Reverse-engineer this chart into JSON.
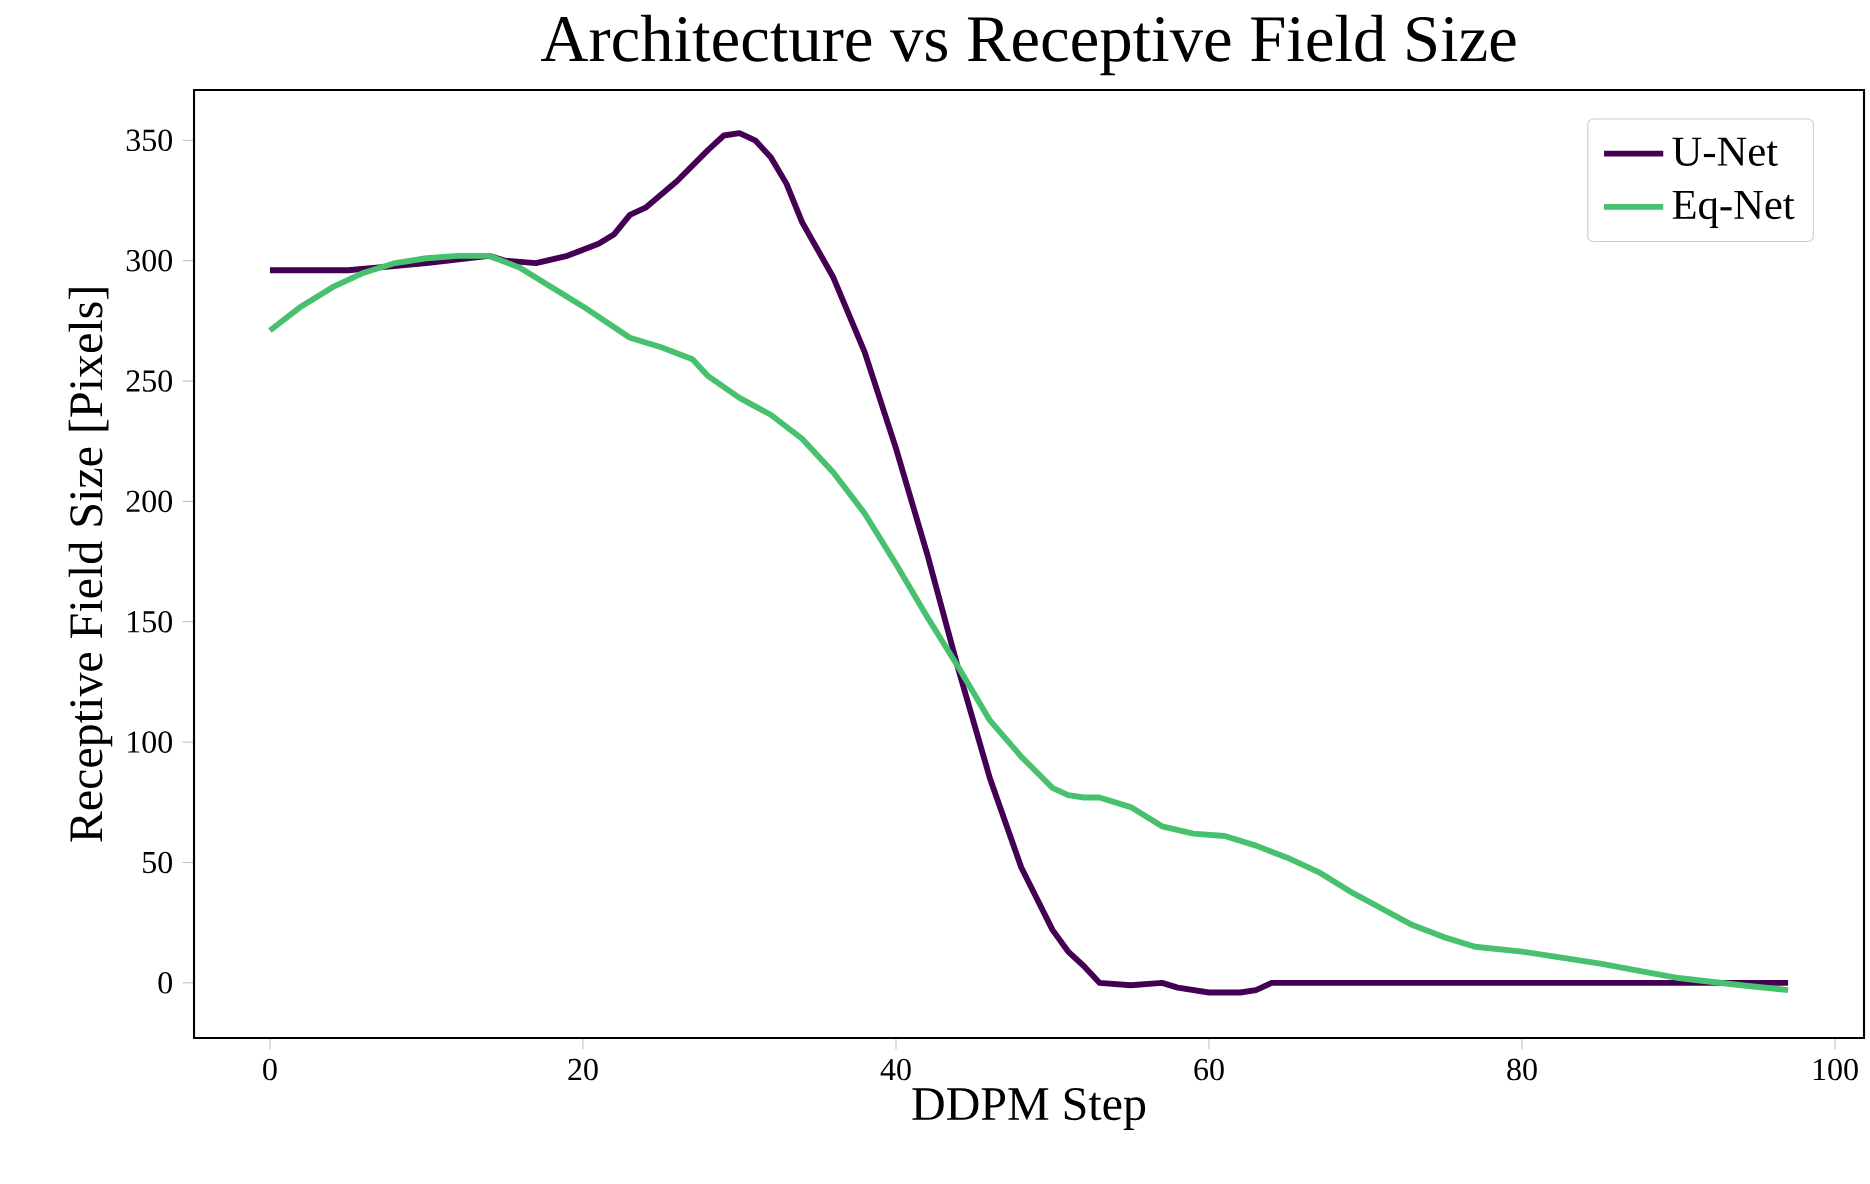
{
  "chart_data": {
    "type": "line",
    "title": "Architecture vs Receptive Field Size",
    "xlabel": "DDPM Step",
    "ylabel": "Receptive Field Size [Pixels]",
    "xlim": [
      -4.85,
      101.85
    ],
    "ylim": [
      -22.9,
      370.9
    ],
    "xticks": [
      0,
      20,
      40,
      60,
      80,
      100
    ],
    "yticks": [
      0,
      50,
      100,
      150,
      200,
      250,
      300,
      350
    ],
    "legend": "top right",
    "grid": false,
    "marker": "none",
    "line_style": "solid",
    "series": [
      {
        "name": "U-Net",
        "color": "#440154",
        "x": [
          0,
          5,
          10,
          14,
          15,
          17,
          19,
          21,
          22,
          23,
          24,
          26,
          28,
          29,
          30,
          31,
          32,
          33,
          34,
          36,
          38,
          40,
          42,
          44,
          46,
          48,
          50,
          51,
          52,
          53,
          55,
          57,
          58,
          60,
          62,
          63,
          64,
          65,
          97
        ],
        "values": [
          296,
          296,
          299,
          302,
          300,
          299,
          302,
          307,
          311,
          319,
          322,
          333,
          346,
          352,
          353,
          350,
          343,
          332,
          316,
          293,
          262,
          222,
          178,
          130,
          85,
          48,
          22,
          13,
          7,
          0,
          -1,
          0,
          -2,
          -4,
          -4,
          -3,
          0,
          0,
          0
        ]
      },
      {
        "name": "Eq-Net",
        "color": "#48c16e",
        "x": [
          0,
          2,
          4,
          6,
          8,
          10,
          12,
          14,
          16,
          18,
          20,
          23,
          25,
          27,
          28,
          30,
          32,
          34,
          36,
          38,
          40,
          42,
          44,
          46,
          48,
          50,
          51,
          52,
          53,
          55,
          57,
          59,
          61,
          63,
          65,
          67,
          69,
          71,
          73,
          75,
          77,
          80,
          82,
          85,
          90,
          94,
          97
        ],
        "values": [
          271,
          281,
          289,
          295,
          299,
          301,
          302,
          302,
          297,
          289,
          281,
          268,
          264,
          259,
          252,
          243,
          236,
          226,
          212,
          195,
          174,
          152,
          131,
          109,
          94,
          81,
          78,
          77,
          77,
          73,
          65,
          62,
          61,
          57,
          52,
          46,
          38,
          31,
          24,
          19,
          15,
          13,
          11,
          8,
          2,
          -1,
          -3
        ]
      }
    ]
  }
}
